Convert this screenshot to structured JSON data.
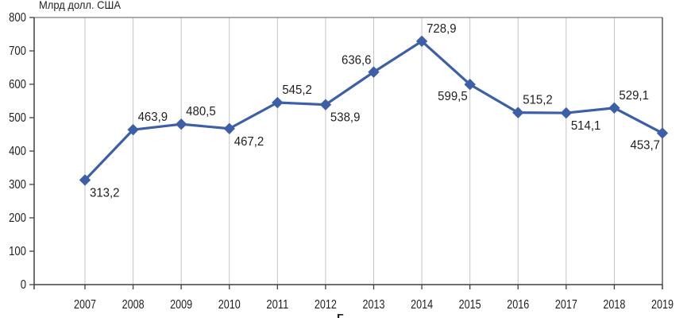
{
  "chart_data": {
    "type": "line",
    "title": "Млрд долл. США",
    "ylabel": "Млрд долл. США",
    "xlabel": "",
    "x": [
      "2007",
      "2008",
      "2009",
      "2010",
      "2011",
      "2012",
      "2013",
      "2014",
      "2015",
      "2016",
      "2017",
      "2018",
      "2019"
    ],
    "values": [
      313.2,
      463.9,
      480.5,
      467.2,
      545.2,
      538.9,
      636.6,
      728.9,
      599.5,
      515.2,
      514.1,
      529.1,
      453.7
    ],
    "value_labels": [
      "313,2",
      "463,9",
      "480,5",
      "467,2",
      "545,2",
      "538,9",
      "636,6",
      "728,9",
      "599,5",
      "515,2",
      "514,1",
      "529,1",
      "453,7"
    ],
    "label_pos": [
      "below-right",
      "above-right",
      "above-right",
      "below-right",
      "above-right",
      "below-right",
      "above-left",
      "above-right",
      "below-left",
      "above-right",
      "below-right",
      "above-right",
      "below-left"
    ],
    "ylim": [
      0,
      800
    ],
    "ytick_step": 100,
    "yticks": [
      "0",
      "100",
      "200",
      "300",
      "400",
      "500",
      "600",
      "700",
      "800"
    ],
    "grid": "vertical",
    "legend": "none",
    "marker": "diamond",
    "line_color": "#3c5fa8",
    "grid_color": "#c3c3c3",
    "axis_color": "#404040",
    "frame_top_color": "#7a7a7a",
    "text_color": "#1f1f1f"
  },
  "caption_fragment": "Г"
}
